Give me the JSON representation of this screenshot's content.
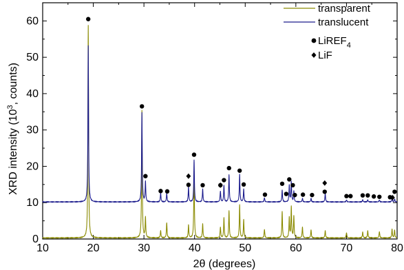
{
  "chart_data": {
    "type": "line",
    "xlabel_prefix": "2",
    "xlabel_theta": "θ",
    "xlabel_suffix": " (degrees)",
    "ylabel_main": "XRD intensity (10",
    "ylabel_sup": "3",
    "ylabel_end": ", counts)",
    "xlim": [
      10,
      80
    ],
    "ylim": [
      0,
      65
    ],
    "xticks": [
      10,
      20,
      30,
      40,
      50,
      60,
      70,
      80
    ],
    "yticks": [
      0,
      10,
      20,
      30,
      40,
      50,
      60
    ],
    "grid": false,
    "legend_position": "top-right",
    "series": [
      {
        "name": "transparent",
        "color": "#8a8a00",
        "baseline": 0.3,
        "peaks": [
          [
            19.0,
            58.5
          ],
          [
            29.6,
            35.0
          ],
          [
            30.3,
            5.5
          ],
          [
            33.3,
            2.0
          ],
          [
            34.5,
            4.2
          ],
          [
            38.8,
            3.5
          ],
          [
            39.9,
            18.5
          ],
          [
            41.6,
            3.8
          ],
          [
            45.1,
            3.0
          ],
          [
            45.8,
            5.5
          ],
          [
            46.8,
            7.5
          ],
          [
            48.9,
            9.0
          ],
          [
            49.7,
            5.0
          ],
          [
            53.8,
            2.4
          ],
          [
            57.3,
            7.2
          ],
          [
            58.7,
            5.5
          ],
          [
            59.1,
            8.5
          ],
          [
            59.6,
            6.0
          ],
          [
            61.3,
            3.0
          ],
          [
            63.0,
            2.2
          ],
          [
            65.8,
            2.0
          ],
          [
            70.0,
            1.5
          ],
          [
            73.2,
            1.6
          ],
          [
            74.2,
            2.0
          ],
          [
            76.5,
            1.8
          ],
          [
            79.0,
            2.4
          ],
          [
            79.5,
            2.2
          ]
        ]
      },
      {
        "name": "translucent",
        "color": "#1a1a8c",
        "baseline": 10.2,
        "peaks": [
          [
            19.0,
            43.0
          ],
          [
            29.6,
            24.5
          ],
          [
            30.3,
            5.5
          ],
          [
            33.3,
            2.5
          ],
          [
            34.5,
            2.4
          ],
          [
            38.8,
            4.0
          ],
          [
            39.9,
            11.5
          ],
          [
            41.6,
            3.5
          ],
          [
            45.1,
            3.0
          ],
          [
            45.8,
            4.5
          ],
          [
            46.8,
            7.5
          ],
          [
            48.9,
            7.5
          ],
          [
            49.7,
            3.5
          ],
          [
            53.8,
            1.2
          ],
          [
            57.3,
            3.2
          ],
          [
            58.7,
            4.5
          ],
          [
            59.1,
            5.5
          ],
          [
            59.6,
            3.0
          ],
          [
            61.3,
            1.0
          ],
          [
            63.0,
            1.0
          ],
          [
            65.8,
            2.3
          ],
          [
            70.0,
            0.6
          ],
          [
            73.2,
            0.6
          ],
          [
            74.2,
            0.6
          ],
          [
            76.5,
            0.6
          ],
          [
            79.0,
            1.0
          ],
          [
            79.5,
            0.8
          ]
        ]
      }
    ],
    "markers": {
      "LiREF4": [
        [
          19.0,
          60.5
        ],
        [
          29.6,
          36.5
        ],
        [
          30.3,
          17.3
        ],
        [
          33.3,
          13.2
        ],
        [
          34.6,
          13.1
        ],
        [
          38.8,
          14.9
        ],
        [
          39.9,
          23.2
        ],
        [
          41.6,
          14.8
        ],
        [
          45.1,
          14.8
        ],
        [
          45.8,
          16.2
        ],
        [
          46.8,
          19.5
        ],
        [
          48.9,
          18.8
        ],
        [
          49.7,
          15.0
        ],
        [
          53.9,
          12.2
        ],
        [
          57.3,
          15.2
        ],
        [
          58.7,
          16.4
        ],
        [
          58.1,
          12.4
        ],
        [
          59.4,
          14.8
        ],
        [
          59.8,
          12.1
        ],
        [
          61.4,
          12.2
        ],
        [
          63.2,
          12.1
        ],
        [
          65.7,
          13.0
        ],
        [
          70.0,
          11.8
        ],
        [
          70.8,
          11.8
        ],
        [
          73.2,
          12.0
        ],
        [
          74.2,
          12.0
        ],
        [
          75.4,
          11.7
        ],
        [
          76.5,
          11.6
        ],
        [
          78.6,
          11.5
        ],
        [
          79.5,
          13.0
        ]
      ],
      "LiF": [
        [
          38.8,
          17.3
        ],
        [
          45.1,
          14.8
        ],
        [
          65.7,
          15.4
        ],
        [
          79.1,
          11.4
        ]
      ]
    },
    "legend": {
      "series_labels": [
        "transparent",
        "translucent"
      ],
      "marker_label_1_main": "LiREF",
      "marker_label_1_sub": "4",
      "marker_label_2": "LiF"
    }
  }
}
